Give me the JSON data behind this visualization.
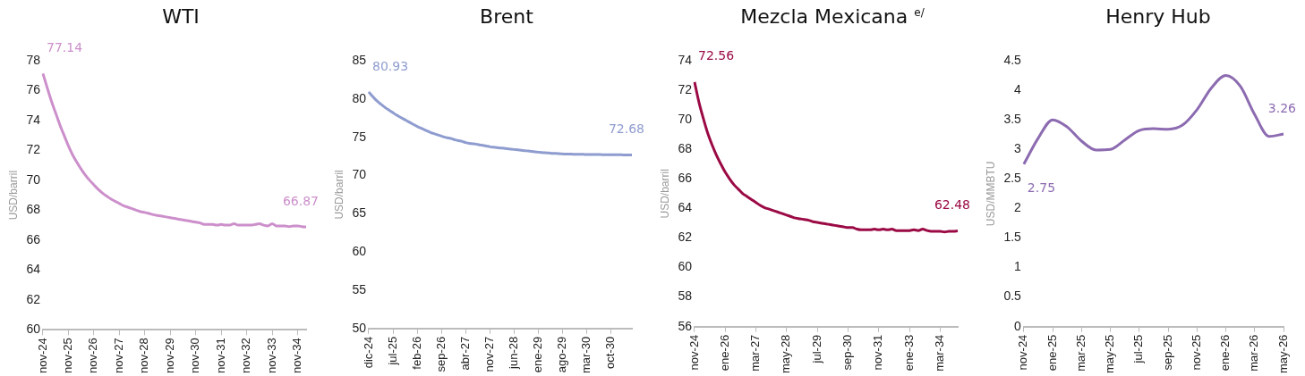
{
  "chart_data": [
    {
      "type": "line",
      "title": "WTI",
      "ylabel": "USD/barril",
      "ylim": [
        60,
        78
      ],
      "yticks": [
        60,
        62,
        64,
        66,
        68,
        70,
        72,
        74,
        76,
        78
      ],
      "categories": [
        "nov-24",
        null,
        null,
        null,
        null,
        null,
        "nov-25",
        null,
        null,
        null,
        null,
        null,
        "nov-26",
        null,
        null,
        null,
        null,
        null,
        "nov-27",
        null,
        null,
        null,
        null,
        null,
        "nov-28",
        null,
        null,
        null,
        null,
        null,
        "nov-29",
        null,
        null,
        null,
        null,
        null,
        "nov-30",
        null,
        null,
        null,
        null,
        null,
        "nov-31",
        null,
        null,
        null,
        null,
        null,
        "nov-32",
        null,
        null,
        null,
        null,
        null,
        "nov-33",
        null,
        null,
        null,
        null,
        null,
        "nov-34",
        null,
        null
      ],
      "series": [
        {
          "color": "#cc8fcb",
          "values": [
            77.14,
            76.2,
            75.3,
            74.5,
            73.7,
            73.0,
            72.3,
            71.7,
            71.2,
            70.75,
            70.35,
            70.0,
            69.7,
            69.4,
            69.15,
            68.95,
            68.75,
            68.6,
            68.45,
            68.3,
            68.2,
            68.1,
            68.0,
            67.9,
            67.85,
            67.78,
            67.7,
            67.65,
            67.6,
            67.55,
            67.5,
            67.45,
            67.4,
            67.35,
            67.3,
            67.25,
            67.2,
            67.15,
            67.05,
            67.05,
            67.05,
            67.0,
            67.05,
            67.0,
            67.0,
            67.1,
            67.0,
            67.0,
            67.0,
            67.0,
            67.05,
            67.1,
            67.0,
            66.95,
            67.1,
            66.95,
            66.95,
            66.95,
            66.9,
            66.95,
            66.95,
            66.9,
            66.87
          ],
          "value_labels": [
            "77.14",
            null,
            null,
            null,
            null,
            null,
            null,
            null,
            null,
            null,
            null,
            null,
            null,
            null,
            null,
            null,
            null,
            null,
            null,
            null,
            null,
            null,
            null,
            null,
            null,
            null,
            null,
            null,
            null,
            null,
            null,
            null,
            null,
            null,
            null,
            null,
            null,
            null,
            null,
            null,
            null,
            null,
            null,
            null,
            null,
            null,
            null,
            null,
            null,
            null,
            null,
            null,
            null,
            null,
            null,
            null,
            null,
            null,
            null,
            null,
            null,
            null,
            "66.87"
          ]
        }
      ]
    },
    {
      "type": "line",
      "title": "Brent",
      "ylabel": "USD/barril",
      "ylim": [
        50,
        85
      ],
      "yticks": [
        50,
        55,
        60,
        65,
        70,
        75,
        80,
        85
      ],
      "categories": [
        "dic-24",
        null,
        null,
        null,
        null,
        null,
        null,
        "jul-25",
        null,
        null,
        null,
        null,
        null,
        null,
        "feb-26",
        null,
        null,
        null,
        null,
        null,
        null,
        "sep-26",
        null,
        null,
        null,
        null,
        null,
        null,
        "abr-27",
        null,
        null,
        null,
        null,
        null,
        null,
        "nov-27",
        null,
        null,
        null,
        null,
        null,
        null,
        "jun-28",
        null,
        null,
        null,
        null,
        null,
        null,
        "ene-29",
        null,
        null,
        null,
        null,
        null,
        null,
        "ago-29",
        null,
        null,
        null,
        null,
        null,
        null,
        "mar-30",
        null,
        null,
        null,
        null,
        null,
        null,
        "oct-30",
        null,
        null,
        null,
        null,
        null,
        null
      ],
      "series": [
        {
          "color": "#8e9ccf",
          "values": [
            80.93,
            80.4,
            79.9,
            79.5,
            79.15,
            78.8,
            78.5,
            78.2,
            77.9,
            77.65,
            77.4,
            77.15,
            76.9,
            76.65,
            76.4,
            76.2,
            76.0,
            75.8,
            75.6,
            75.45,
            75.3,
            75.15,
            75.0,
            74.9,
            74.8,
            74.65,
            74.55,
            74.45,
            74.3,
            74.2,
            74.15,
            74.1,
            74.0,
            73.95,
            73.85,
            73.75,
            73.7,
            73.65,
            73.6,
            73.55,
            73.5,
            73.45,
            73.4,
            73.35,
            73.3,
            73.25,
            73.2,
            73.15,
            73.1,
            73.05,
            73.0,
            72.98,
            72.95,
            72.9,
            72.88,
            72.85,
            72.82,
            72.8,
            72.8,
            72.78,
            72.78,
            72.77,
            72.76,
            72.75,
            72.75,
            72.74,
            72.74,
            72.73,
            72.72,
            72.72,
            72.71,
            72.71,
            72.7,
            72.7,
            72.69,
            72.69,
            72.68
          ],
          "value_labels": [
            "80.93",
            null,
            null,
            null,
            null,
            null,
            null,
            null,
            null,
            null,
            null,
            null,
            null,
            null,
            null,
            null,
            null,
            null,
            null,
            null,
            null,
            null,
            null,
            null,
            null,
            null,
            null,
            null,
            null,
            null,
            null,
            null,
            null,
            null,
            null,
            null,
            null,
            null,
            null,
            null,
            null,
            null,
            null,
            null,
            null,
            null,
            null,
            null,
            null,
            null,
            null,
            null,
            null,
            null,
            null,
            null,
            null,
            null,
            null,
            null,
            null,
            null,
            null,
            null,
            null,
            null,
            null,
            null,
            null,
            null,
            null,
            null,
            null,
            null,
            null,
            null,
            "72.68"
          ]
        }
      ]
    },
    {
      "type": "line",
      "title": "Mezcla Mexicana $^{e/}$",
      "ylabel": "USD/barril",
      "ylim": [
        56,
        74
      ],
      "yticks": [
        56,
        58,
        60,
        62,
        64,
        66,
        68,
        70,
        72,
        74
      ],
      "categories": [
        "nov-24",
        null,
        null,
        null,
        null,
        null,
        null,
        "ene-26",
        null,
        null,
        null,
        null,
        null,
        null,
        "mar-27",
        null,
        null,
        null,
        null,
        null,
        null,
        "may-28",
        null,
        null,
        null,
        null,
        null,
        null,
        "jul-29",
        null,
        null,
        null,
        null,
        null,
        null,
        "sep-30",
        null,
        null,
        null,
        null,
        null,
        null,
        "nov-31",
        null,
        null,
        null,
        null,
        null,
        null,
        "ene-33",
        null,
        null,
        null,
        null,
        null,
        null,
        "mar-34",
        null,
        null,
        null,
        null
      ],
      "series": [
        {
          "color": "#9b0a45",
          "values": [
            72.56,
            71.2,
            70.1,
            69.1,
            68.3,
            67.6,
            67.0,
            66.45,
            66.0,
            65.6,
            65.3,
            65.0,
            64.8,
            64.6,
            64.4,
            64.2,
            64.05,
            63.95,
            63.85,
            63.75,
            63.65,
            63.55,
            63.45,
            63.35,
            63.3,
            63.25,
            63.2,
            63.1,
            63.05,
            63.0,
            62.95,
            62.9,
            62.85,
            62.8,
            62.75,
            62.7,
            62.7,
            62.6,
            62.55,
            62.55,
            62.55,
            62.6,
            62.55,
            62.6,
            62.55,
            62.6,
            62.5,
            62.5,
            62.5,
            62.5,
            62.55,
            62.5,
            62.6,
            62.5,
            62.45,
            62.45,
            62.45,
            62.4,
            62.45,
            62.45,
            62.48
          ],
          "value_labels": [
            "72.56",
            null,
            null,
            null,
            null,
            null,
            null,
            null,
            null,
            null,
            null,
            null,
            null,
            null,
            null,
            null,
            null,
            null,
            null,
            null,
            null,
            null,
            null,
            null,
            null,
            null,
            null,
            null,
            null,
            null,
            null,
            null,
            null,
            null,
            null,
            null,
            null,
            null,
            null,
            null,
            null,
            null,
            null,
            null,
            null,
            null,
            null,
            null,
            null,
            null,
            null,
            null,
            null,
            null,
            null,
            null,
            null,
            null,
            null,
            null,
            "62.48"
          ]
        }
      ]
    },
    {
      "type": "line",
      "title": "Henry Hub",
      "ylabel": "USD/MMBTU",
      "ylim": [
        0,
        4.5
      ],
      "yticks": [
        0,
        0.5,
        1,
        1.5,
        2,
        2.5,
        3,
        3.5,
        4,
        4.5
      ],
      "categories": [
        "nov-24",
        null,
        "ene-25",
        null,
        "mar-25",
        null,
        "may-25",
        null,
        "jul-25",
        null,
        "sep-25",
        null,
        "nov-25",
        null,
        "ene-26",
        null,
        "mar-26",
        null,
        "may-26"
      ],
      "series": [
        {
          "color": "#8c6bb1",
          "values": [
            2.75,
            3.19,
            3.5,
            3.38,
            3.14,
            2.99,
            3.0,
            3.16,
            3.32,
            3.35,
            3.34,
            3.41,
            3.67,
            4.04,
            4.25,
            4.07,
            3.59,
            3.22,
            3.26
          ],
          "value_labels": [
            "2.75",
            null,
            null,
            null,
            null,
            null,
            null,
            null,
            null,
            null,
            null,
            null,
            null,
            null,
            null,
            null,
            null,
            null,
            "3.26"
          ]
        }
      ]
    }
  ]
}
